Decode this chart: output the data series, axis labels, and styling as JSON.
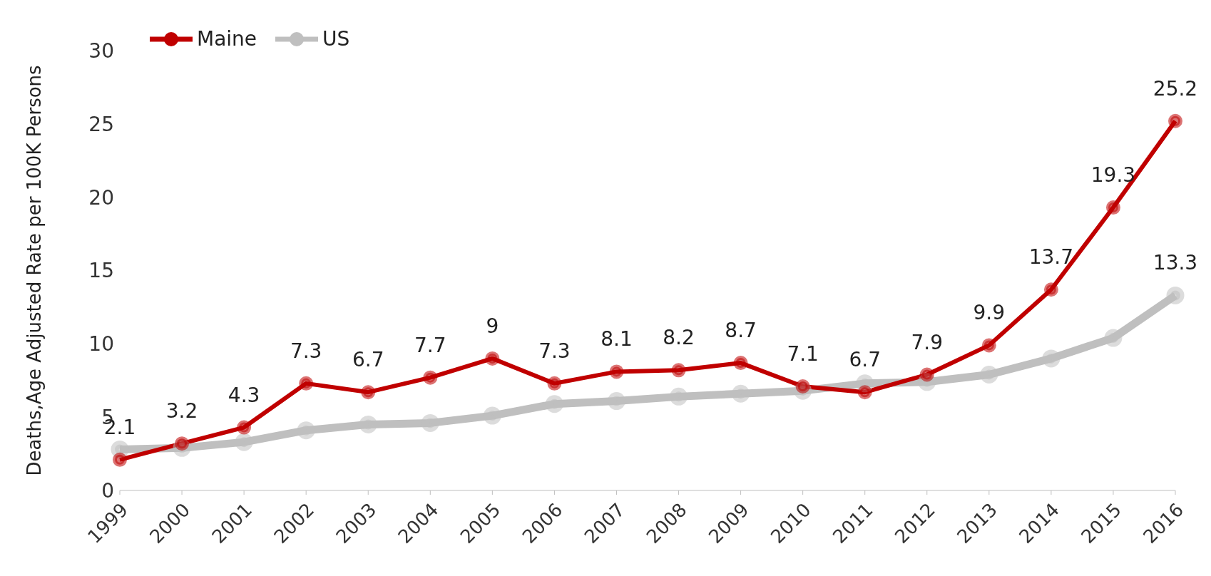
{
  "chart_data": {
    "type": "line",
    "ylabel": "Deaths,Age Adjusted Rate per 100K Persons",
    "categories": [
      "1999",
      "2000",
      "2001",
      "2002",
      "2003",
      "2004",
      "2005",
      "2006",
      "2007",
      "2008",
      "2009",
      "2010",
      "2011",
      "2012",
      "2013",
      "2014",
      "2015",
      "2016"
    ],
    "series": [
      {
        "name": "Maine",
        "color": "#c00000",
        "values": [
          2.1,
          3.2,
          4.3,
          7.3,
          6.7,
          7.7,
          9,
          7.3,
          8.1,
          8.2,
          8.7,
          7.1,
          6.7,
          7.9,
          9.9,
          13.7,
          19.3,
          25.2
        ],
        "value_labels": [
          "2.1",
          "3.2",
          "4.3",
          "7.3",
          "6.7",
          "7.7",
          "9",
          "7.3",
          "8.1",
          "8.2",
          "8.7",
          "7.1",
          "6.7",
          "7.9",
          "9.9",
          "13.7",
          "19.3",
          "25.2"
        ]
      },
      {
        "name": "US",
        "color": "#bfbfbf",
        "values": [
          2.8,
          2.9,
          3.3,
          4.1,
          4.5,
          4.6,
          5.1,
          5.9,
          6.1,
          6.4,
          6.6,
          6.8,
          7.3,
          7.4,
          7.9,
          9.0,
          10.4,
          13.3
        ],
        "value_labels": [
          null,
          null,
          null,
          null,
          null,
          null,
          null,
          null,
          null,
          null,
          null,
          null,
          null,
          null,
          null,
          null,
          null,
          "13.3"
        ]
      }
    ],
    "ylim": [
      0,
      30
    ],
    "yticks": [
      0,
      5,
      10,
      15,
      20,
      25,
      30
    ],
    "grid": false,
    "legend": "top left",
    "marker": "circle",
    "line_style": "solid"
  }
}
